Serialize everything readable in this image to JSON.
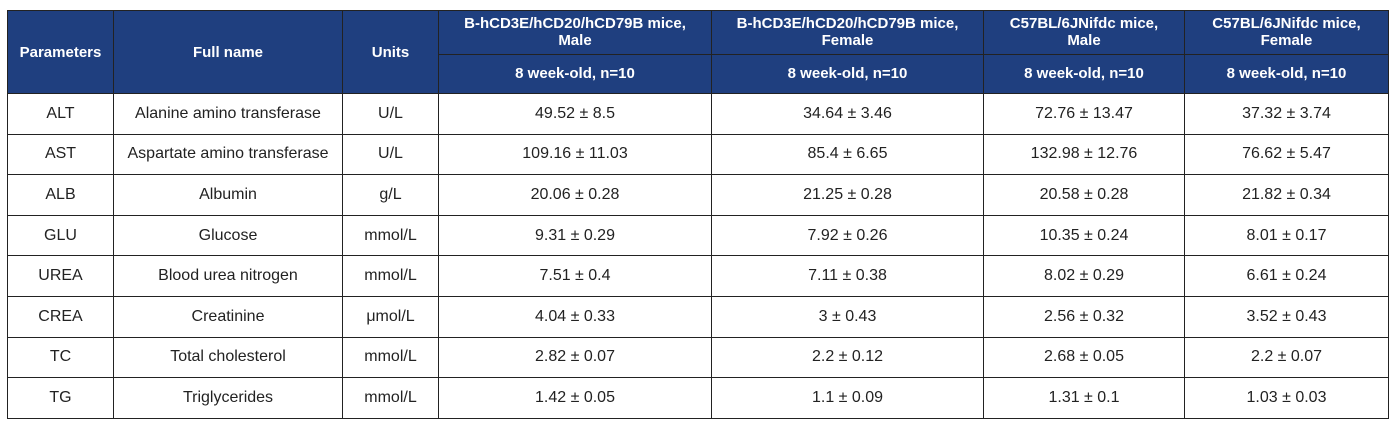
{
  "table": {
    "headers": {
      "parameters": "Parameters",
      "full_name": "Full name",
      "units": "Units",
      "groups": [
        {
          "line1": "B-hCD3E/hCD20/hCD79B mice,",
          "line2": "Male",
          "sub": "8 week-old, n=10"
        },
        {
          "line1": "B-hCD3E/hCD20/hCD79B mice,",
          "line2": "Female",
          "sub": "8 week-old, n=10"
        },
        {
          "line1": "C57BL/6JNifdc mice,",
          "line2": "Male",
          "sub": "8 week-old, n=10"
        },
        {
          "line1": "C57BL/6JNifdc mice,",
          "line2": "Female",
          "sub": "8 week-old, n=10"
        }
      ]
    },
    "rows": [
      {
        "param": "ALT",
        "name": "Alanine amino transferase",
        "unit": "U/L",
        "vals": [
          "49.52 ± 8.5",
          "34.64 ± 3.46",
          "72.76 ± 13.47",
          "37.32 ± 3.74"
        ]
      },
      {
        "param": "AST",
        "name": "Aspartate amino transferase",
        "unit": "U/L",
        "vals": [
          "109.16 ± 11.03",
          "85.4 ± 6.65",
          "132.98 ± 12.76",
          "76.62 ± 5.47"
        ]
      },
      {
        "param": "ALB",
        "name": "Albumin",
        "unit": "g/L",
        "vals": [
          "20.06 ± 0.28",
          "21.25 ± 0.28",
          "20.58 ± 0.28",
          "21.82 ± 0.34"
        ]
      },
      {
        "param": "GLU",
        "name": "Glucose",
        "unit": "mmol/L",
        "vals": [
          "9.31 ± 0.29",
          "7.92 ± 0.26",
          "10.35 ± 0.24",
          "8.01 ± 0.17"
        ]
      },
      {
        "param": "UREA",
        "name": "Blood urea nitrogen",
        "unit": "mmol/L",
        "vals": [
          "7.51 ± 0.4",
          "7.11 ± 0.38",
          "8.02 ± 0.29",
          "6.61 ± 0.24"
        ]
      },
      {
        "param": "CREA",
        "name": "Creatinine",
        "unit": "μmol/L",
        "vals": [
          "4.04 ± 0.33",
          "3 ± 0.43",
          "2.56 ± 0.32",
          "3.52 ± 0.43"
        ]
      },
      {
        "param": "TC",
        "name": "Total cholesterol",
        "unit": "mmol/L",
        "vals": [
          "2.82 ± 0.07",
          "2.2 ± 0.12",
          "2.68 ± 0.05",
          "2.2 ± 0.07"
        ]
      },
      {
        "param": "TG",
        "name": "Triglycerides",
        "unit": "mmol/L",
        "vals": [
          "1.42 ± 0.05",
          "1.1 ± 0.09",
          "1.31 ± 0.1",
          "1.03 ± 0.03"
        ]
      }
    ]
  },
  "colors": {
    "header_bg": "#1f3f7f",
    "header_text": "#ffffff",
    "border": "#222222"
  }
}
